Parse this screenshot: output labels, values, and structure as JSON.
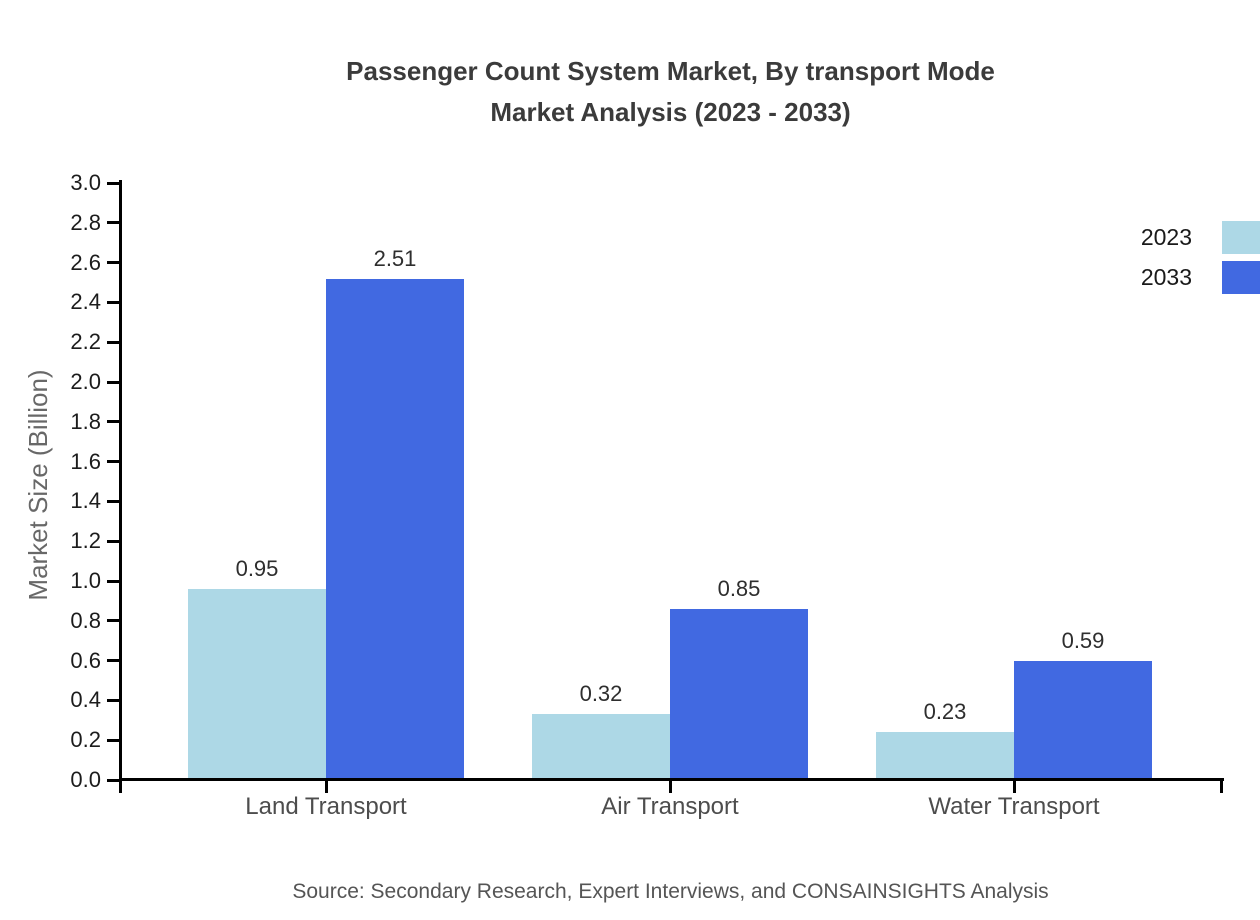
{
  "header": {
    "title_line1": "Passenger Count System Market, By transport Mode",
    "title_line2": "Market Analysis (2023 - 2033)"
  },
  "footer": {
    "source": "Source: Secondary Research, Expert Interviews, and CONSAINSIGHTS Analysis"
  },
  "chart_data": {
    "type": "bar",
    "title": "Passenger Count System Market, By transport Mode Market Analysis (2023 - 2033)",
    "categories": [
      "Land Transport",
      "Air Transport",
      "Water Transport"
    ],
    "series": [
      {
        "name": "2023",
        "color": "#ADD8E6",
        "values": [
          0.95,
          0.32,
          0.23
        ]
      },
      {
        "name": "2033",
        "color": "#4169E1",
        "values": [
          2.51,
          0.85,
          0.59
        ]
      }
    ],
    "xlabel": "",
    "ylabel": "Market Size (Billion)",
    "ylim": [
      0.0,
      3.0
    ],
    "ytick_step": 0.2,
    "grid": false,
    "legend_position": "right",
    "value_labels": true,
    "axis_color": "#000000"
  }
}
